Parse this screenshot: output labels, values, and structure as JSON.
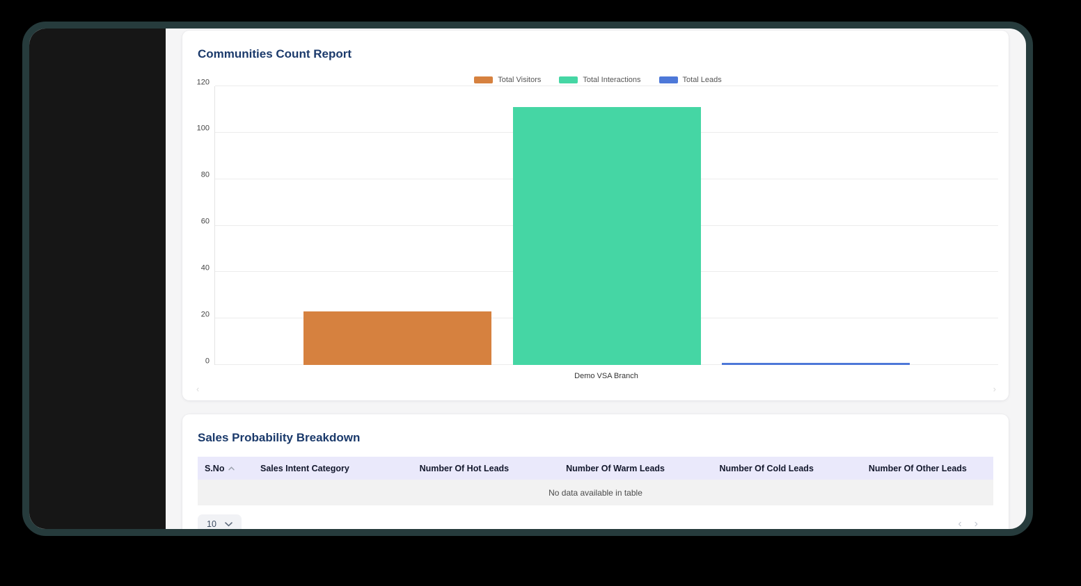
{
  "colors": {
    "frame_border": "#263b3c",
    "sidebar_bg": "#161616",
    "content_bg": "#f5f5f6",
    "card_bg": "#ffffff",
    "title_text": "#1b3a6b",
    "table_header_bg": "#eae9fb",
    "empty_row_bg": "#f2f2f2"
  },
  "chart_card": {
    "title": "Communities Count Report",
    "scroll_left_icon": "‹",
    "scroll_right_icon": "›"
  },
  "chart_data": {
    "type": "bar",
    "title": "Communities Count Report",
    "categories": [
      "Demo VSA Branch"
    ],
    "series": [
      {
        "name": "Total Visitors",
        "color": "#d6813f",
        "values": [
          23
        ]
      },
      {
        "name": "Total Interactions",
        "color": "#45d6a4",
        "values": [
          111
        ]
      },
      {
        "name": "Total Leads",
        "color": "#4d78d8",
        "values": [
          1
        ]
      }
    ],
    "xlabel": "",
    "ylabel": "",
    "ylim": [
      0,
      120
    ],
    "yticks": [
      0,
      20,
      40,
      60,
      80,
      100,
      120
    ],
    "grid": true,
    "legend_position": "top"
  },
  "table_card": {
    "title": "Sales Probability Breakdown",
    "columns": [
      "S.No",
      "Sales Intent Category",
      "Number Of Hot Leads",
      "Number Of Warm Leads",
      "Number Of Cold Leads",
      "Number Of Other Leads"
    ],
    "sorted_column": "S.No",
    "sort_direction": "ascending",
    "rows": [],
    "empty_message": "No data available in table",
    "pagination": {
      "page_size": "10",
      "prev_icon": "‹",
      "next_icon": "›"
    }
  }
}
